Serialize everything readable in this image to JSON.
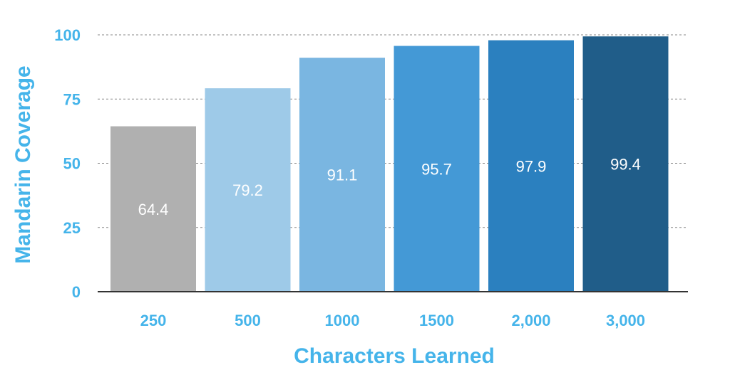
{
  "colors": {
    "accent": "#45b4ea",
    "axis": "#333333",
    "grid": "#8a8a8a",
    "data_label": "#ffffff"
  },
  "chart_data": {
    "type": "bar",
    "title": "",
    "xlabel": "Characters Learned",
    "ylabel": "Mandarin Coverage",
    "categories": [
      "250",
      "500",
      "1000",
      "1500",
      "2,000",
      "3,000"
    ],
    "values": [
      64.4,
      79.2,
      91.1,
      95.7,
      97.9,
      99.4
    ],
    "data_labels": [
      "64.4",
      "79.2",
      "91.1",
      "95.7",
      "97.9",
      "99.4"
    ],
    "bar_colors": [
      "#b0b0b0",
      "#9ecae8",
      "#7ab6e1",
      "#4499d6",
      "#2b80bf",
      "#205d89"
    ],
    "ylim": [
      0,
      100
    ],
    "yticks": [
      0,
      25,
      50,
      75,
      100
    ],
    "ytick_labels": [
      "0",
      "25",
      "50",
      "75",
      "100"
    ],
    "grid": true,
    "legend": "none"
  }
}
